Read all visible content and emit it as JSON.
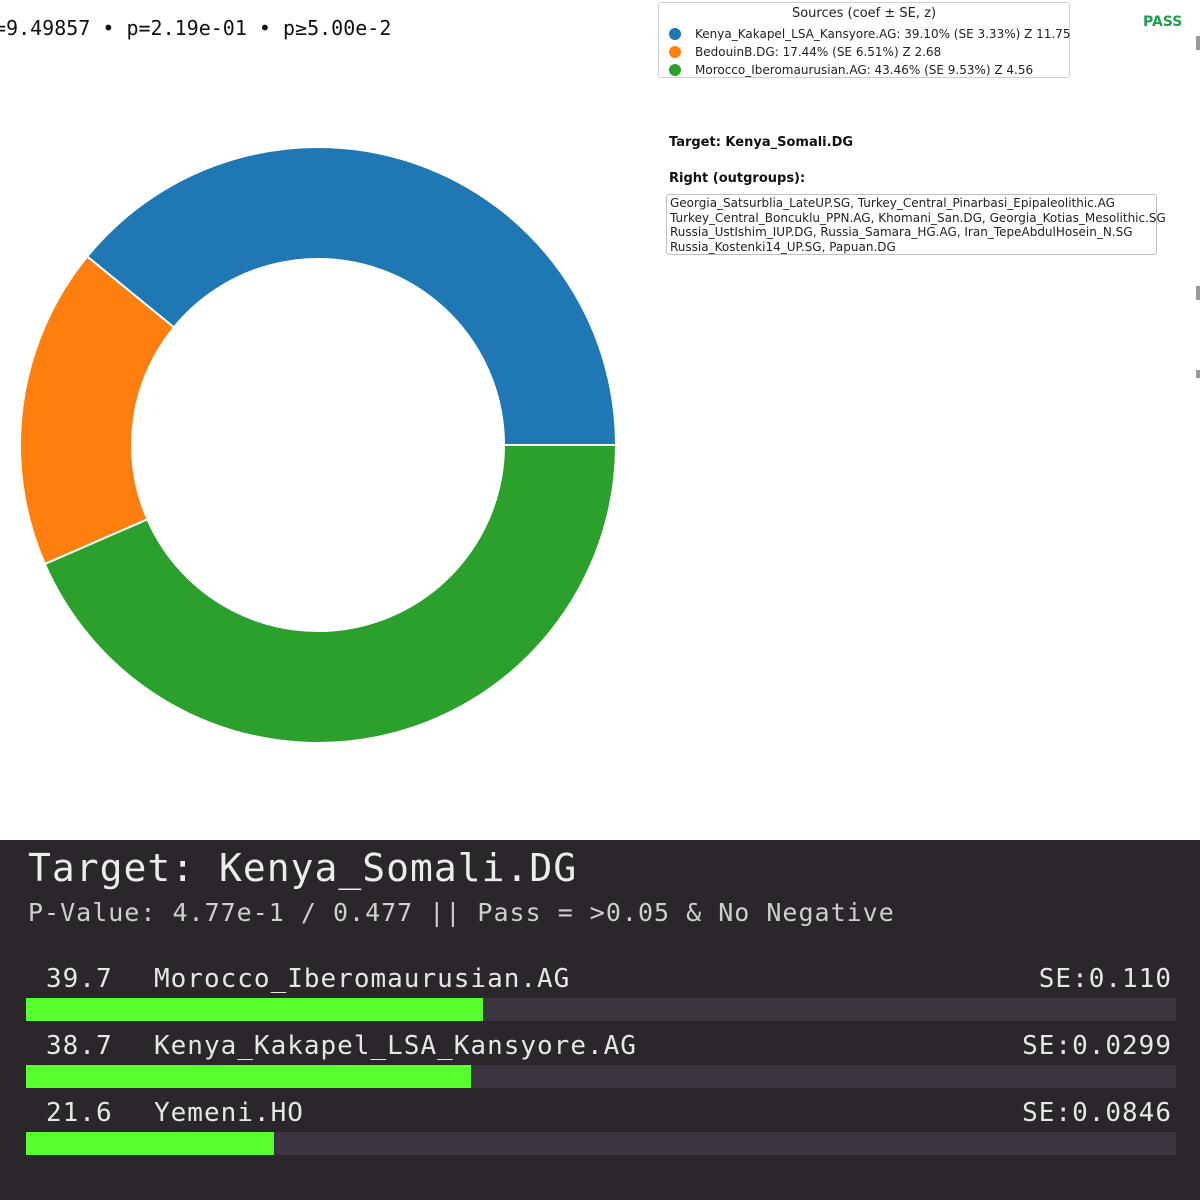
{
  "top": {
    "stats_line": "=9.49857 • p=2.19e-01 • p≥5.00e-2",
    "pass_label": "PASS",
    "legend_title": "Sources (coef ± SE, z)",
    "target_label": "Target: Kenya_Somali.DG",
    "right_label": "Right (outgroups):",
    "outgroups_lines": [
      "Georgia_Satsurblia_LateUP.SG, Turkey_Central_Pinarbasi_Epipaleolithic.AG",
      "Turkey_Central_Boncuklu_PPN.AG, Khomani_San.DG, Georgia_Kotias_Mesolithic.SG",
      "Russia_UstIshim_IUP.DG, Russia_Samara_HG.AG, Iran_TepeAbdulHosein_N.SG",
      "Russia_Kostenki14_UP.SG, Papuan.DG"
    ]
  },
  "chart_data": [
    {
      "type": "pie",
      "variant": "donut",
      "legend_position": "top-right",
      "slices": [
        {
          "label": "Kenya_Kakapel_LSA_Kansyore.AG",
          "value": 39.1,
          "legend_text": "Kenya_Kakapel_LSA_Kansyore.AG: 39.10% (SE 3.33%)  Z 11.75",
          "color": "#1f77b4"
        },
        {
          "label": "BedouinB.DG",
          "value": 17.44,
          "legend_text": "BedouinB.DG: 17.44% (SE 6.51%)  Z 2.68",
          "color": "#ff7f0e"
        },
        {
          "label": "Morocco_Iberomaurusian.AG",
          "value": 43.46,
          "legend_text": "Morocco_Iberomaurusian.AG: 43.46% (SE 9.53%)  Z 4.56",
          "color": "#2ca02c"
        }
      ]
    },
    {
      "type": "bar",
      "orientation": "horizontal",
      "title": "Target: Kenya_Somali.DG",
      "subtitle": "P-Value: 4.77e-1 / 0.477 || Pass = >0.05 & No Negative",
      "xlim": [
        0,
        100
      ],
      "bar_color": "#57ff2f",
      "track_color": "#3b3540",
      "rows": [
        {
          "value_label": "39.7",
          "value": 39.7,
          "name": "Morocco_Iberomaurusian.AG",
          "se": "SE:0.110"
        },
        {
          "value_label": "38.7",
          "value": 38.7,
          "name": "Kenya_Kakapel_LSA_Kansyore.AG",
          "se": "SE:0.0299"
        },
        {
          "value_label": "21.6",
          "value": 21.6,
          "name": "Yemeni.HO",
          "se": "SE:0.0846"
        }
      ]
    }
  ]
}
